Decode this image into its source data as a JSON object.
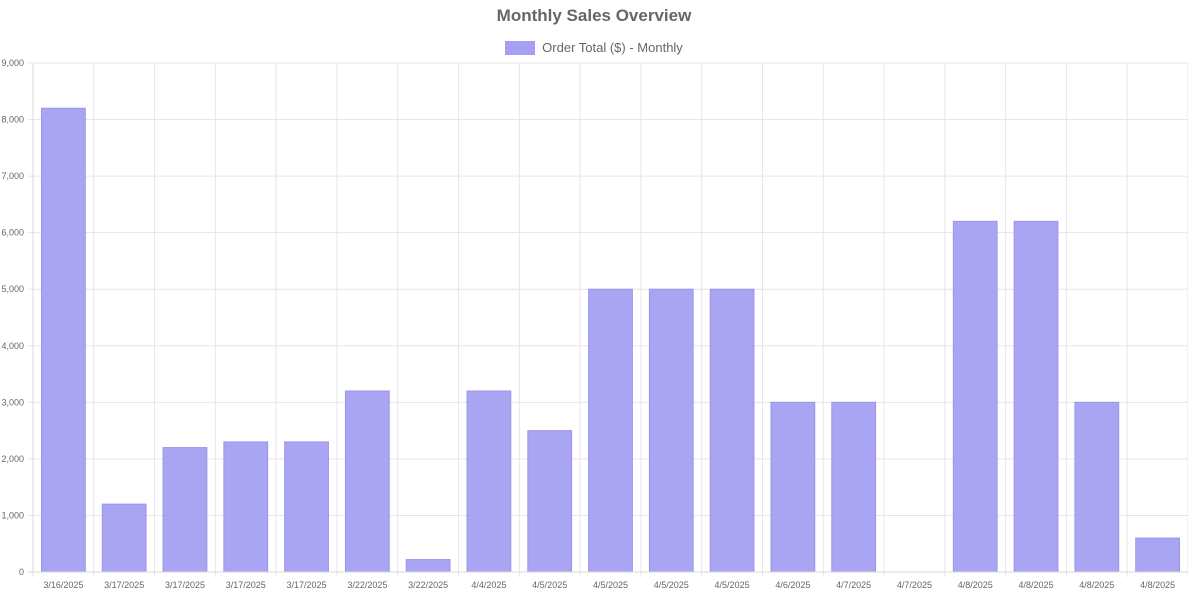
{
  "chart_data": {
    "type": "bar",
    "title": "Monthly Sales Overview",
    "xlabel": "",
    "ylabel": "",
    "ylim": [
      0,
      9000
    ],
    "ytick_step": 1000,
    "grid": true,
    "legend_position": "top-center",
    "categories": [
      "3/16/2025",
      "3/17/2025",
      "3/17/2025",
      "3/17/2025",
      "3/17/2025",
      "3/22/2025",
      "3/22/2025",
      "4/4/2025",
      "4/5/2025",
      "4/5/2025",
      "4/5/2025",
      "4/5/2025",
      "4/6/2025",
      "4/7/2025",
      "4/7/2025",
      "4/8/2025",
      "4/8/2025",
      "4/8/2025",
      "4/8/2025"
    ],
    "series": [
      {
        "name": "Order Total ($) - Monthly",
        "color": "#a5a0f2",
        "values": [
          8200,
          1200,
          2200,
          2300,
          2300,
          3200,
          220,
          3200,
          2500,
          5000,
          5000,
          5000,
          3000,
          3000,
          0,
          6200,
          6200,
          3000,
          600
        ]
      }
    ]
  }
}
